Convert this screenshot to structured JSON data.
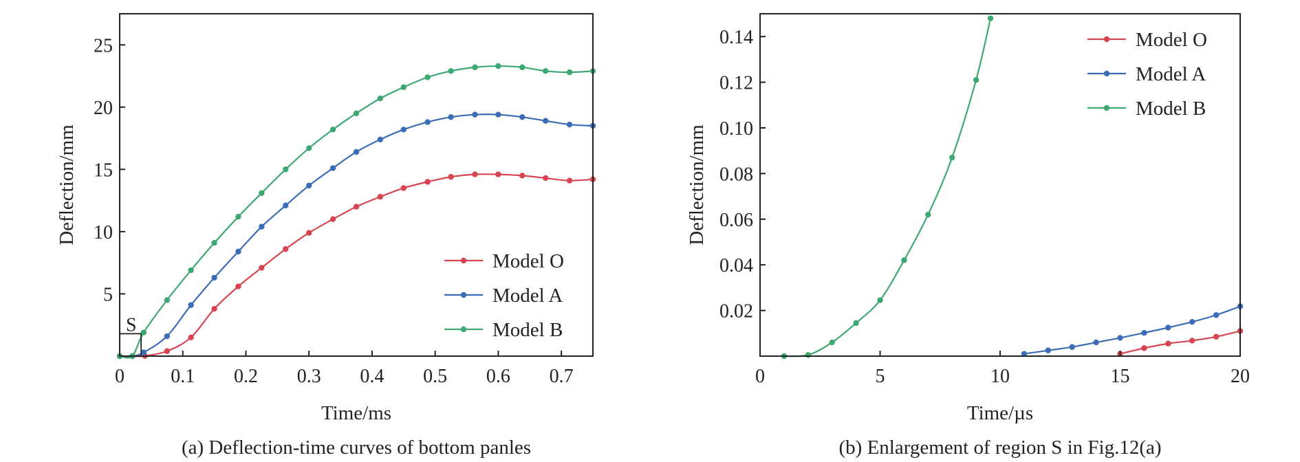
{
  "chart_data": [
    {
      "type": "line",
      "caption": "(a) Deflection-time curves of bottom panles",
      "xlabel": "Time/ms",
      "ylabel": "Deflection/mm",
      "xlim": [
        0,
        0.75
      ],
      "ylim": [
        0,
        27.5
      ],
      "xticks": [
        0,
        0.1,
        0.2,
        0.3,
        0.4,
        0.5,
        0.6,
        0.7
      ],
      "xtick_labels": [
        "0",
        "0.1",
        "0.2",
        "0.3",
        "0.4",
        "0.5",
        "0.6",
        "0.7"
      ],
      "yticks": [
        5,
        10,
        15,
        20,
        25
      ],
      "ytick_labels": [
        "5",
        "10",
        "15",
        "20",
        "25"
      ],
      "grid": false,
      "legend_position": "bottom-right",
      "annotation": {
        "label": "S",
        "x_range": [
          0.0,
          0.034
        ],
        "y_range": [
          0,
          1.8
        ]
      },
      "series": [
        {
          "name": "Model O",
          "color": "#d64550",
          "x": [
            0.0,
            0.02,
            0.04,
            0.075,
            0.113,
            0.15,
            0.188,
            0.225,
            0.263,
            0.3,
            0.338,
            0.375,
            0.413,
            0.45,
            0.488,
            0.525,
            0.563,
            0.6,
            0.638,
            0.675,
            0.713,
            0.75
          ],
          "y": [
            0.0,
            0.0,
            0.02,
            0.4,
            1.5,
            3.8,
            5.6,
            7.1,
            8.6,
            9.9,
            11.0,
            12.0,
            12.8,
            13.5,
            14.0,
            14.4,
            14.6,
            14.6,
            14.5,
            14.3,
            14.1,
            14.2
          ]
        },
        {
          "name": "Model A",
          "color": "#3a6db5",
          "x": [
            0.0,
            0.02,
            0.038,
            0.075,
            0.113,
            0.15,
            0.188,
            0.225,
            0.263,
            0.3,
            0.338,
            0.375,
            0.413,
            0.45,
            0.488,
            0.525,
            0.563,
            0.6,
            0.638,
            0.675,
            0.713,
            0.75
          ],
          "y": [
            0.0,
            0.0,
            0.3,
            1.6,
            4.1,
            6.3,
            8.4,
            10.4,
            12.1,
            13.7,
            15.1,
            16.4,
            17.4,
            18.2,
            18.8,
            19.2,
            19.4,
            19.4,
            19.2,
            18.9,
            18.6,
            18.5
          ]
        },
        {
          "name": "Model B",
          "color": "#3ea872",
          "x": [
            0.0,
            0.02,
            0.038,
            0.075,
            0.113,
            0.15,
            0.188,
            0.225,
            0.263,
            0.3,
            0.338,
            0.375,
            0.413,
            0.45,
            0.488,
            0.525,
            0.563,
            0.6,
            0.638,
            0.675,
            0.713,
            0.75
          ],
          "y": [
            0.0,
            0.0,
            1.9,
            4.5,
            6.9,
            9.1,
            11.2,
            13.1,
            15.0,
            16.7,
            18.2,
            19.5,
            20.7,
            21.6,
            22.4,
            22.9,
            23.2,
            23.3,
            23.2,
            22.9,
            22.8,
            22.9
          ]
        }
      ]
    },
    {
      "type": "line",
      "caption": "(b) Enlargement of region S in Fig.12(a)",
      "xlabel": "Time/µs",
      "ylabel": "Deflection/mm",
      "xlim": [
        0,
        20
      ],
      "ylim": [
        0,
        0.15
      ],
      "xticks": [
        0,
        5,
        10,
        15,
        20
      ],
      "xtick_labels": [
        "0",
        "5",
        "10",
        "15",
        "20"
      ],
      "yticks": [
        0.02,
        0.04,
        0.06,
        0.08,
        0.1,
        0.12,
        0.14
      ],
      "ytick_labels": [
        "0.02",
        "0.04",
        "0.06",
        "0.08",
        "0.10",
        "0.12",
        "0.14"
      ],
      "grid": false,
      "legend_position": "top-right",
      "series": [
        {
          "name": "Model O",
          "color": "#d64550",
          "x": [
            15,
            16,
            17,
            18,
            19,
            20
          ],
          "y": [
            0.001,
            0.0035,
            0.0055,
            0.0068,
            0.0085,
            0.011
          ]
        },
        {
          "name": "Model A",
          "color": "#3a6db5",
          "x": [
            11,
            12,
            13,
            14,
            15,
            16,
            17,
            18,
            19,
            20
          ],
          "y": [
            0.001,
            0.0025,
            0.004,
            0.006,
            0.008,
            0.0102,
            0.0125,
            0.015,
            0.018,
            0.0218
          ]
        },
        {
          "name": "Model B",
          "color": "#3ea872",
          "x": [
            1,
            2,
            3,
            4,
            5,
            6,
            7,
            8,
            9,
            9.6
          ],
          "y": [
            0.0,
            0.0005,
            0.006,
            0.0145,
            0.0245,
            0.042,
            0.062,
            0.087,
            0.121,
            0.148
          ]
        }
      ]
    }
  ]
}
